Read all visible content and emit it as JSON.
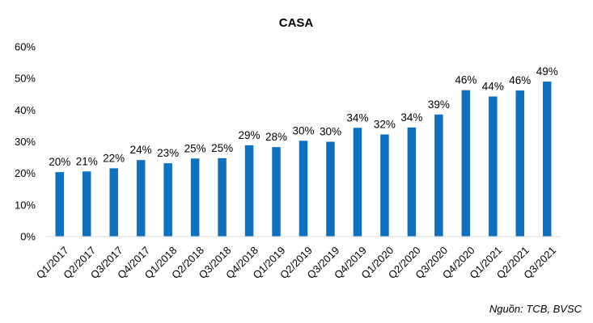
{
  "chart_data": {
    "type": "bar",
    "title": "CASA",
    "xlabel": "",
    "ylabel": "",
    "categories": [
      "Q1/2017",
      "Q2/2017",
      "Q3/2017",
      "Q4/2017",
      "Q1/2018",
      "Q2/2018",
      "Q3/2018",
      "Q4/2018",
      "Q1/2019",
      "Q2/2019",
      "Q3/2019",
      "Q4/2019",
      "Q1/2020",
      "Q2/2020",
      "Q3/2020",
      "Q4/2020",
      "Q1/2021",
      "Q2/2021",
      "Q3/2021"
    ],
    "values": [
      20.4,
      20.6,
      21.6,
      24.2,
      23.2,
      24.7,
      24.8,
      28.9,
      28.3,
      30.3,
      30.0,
      34.4,
      32.3,
      34.5,
      38.6,
      46.3,
      44.3,
      46.2,
      49.0
    ],
    "data_labels": [
      "20%",
      "21%",
      "22%",
      "24%",
      "23%",
      "25%",
      "25%",
      "29%",
      "28%",
      "30%",
      "30%",
      "34%",
      "32%",
      "34%",
      "39%",
      "46%",
      "44%",
      "46%",
      "49%"
    ],
    "y_ticks": [
      "0%",
      "10%",
      "20%",
      "30%",
      "40%",
      "50%",
      "60%"
    ],
    "ylim": [
      0,
      60
    ],
    "grid": false,
    "legend": "none",
    "bar_color": "#0f71bd"
  },
  "source_note": "Nguồn: TCB, BVSC"
}
